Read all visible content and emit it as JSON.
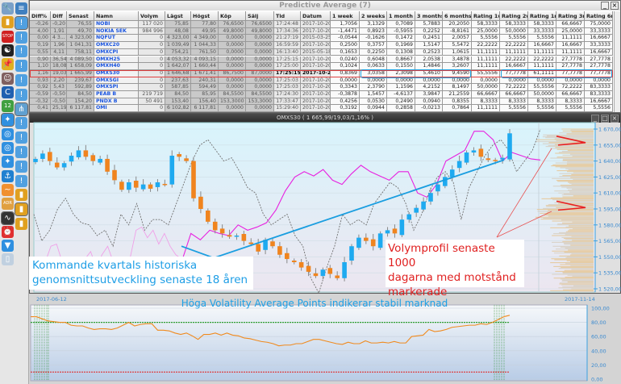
{
  "toolbar": {
    "col1": [
      "wrench-icon",
      "bar-chart-icon",
      "stop-sign-icon",
      "yin-yang-icon",
      "pushpin-icon",
      "person-photo-icon",
      "c-logo-icon",
      "calendar-icon",
      "compass-icon",
      "globe-icon",
      "globe-icon",
      "compass-icon",
      "anchor-icon",
      "line-chart-icon",
      "folder-adr-icon",
      "waveform-icon",
      "alarm-clock-icon",
      "filter-icon",
      "document-icon"
    ],
    "col2": [
      "scroll-icon",
      "chart-alert-icon",
      "chart-alert-icon",
      "chart-alert-icon",
      "chart-alert-icon",
      "chart-alert-icon",
      "chart-alert-icon",
      "network-icon",
      "chart-alert-icon",
      "chart-alert-icon",
      "chart-alert-icon",
      "chart-alert-icon",
      "chart-alert-icon",
      "bar-chart-icon",
      "bar-chart-icon",
      "bar-chart-icon"
    ],
    "calendar_day": "12",
    "folder_label": "ADR",
    "stop_label": "STOP"
  },
  "grid": {
    "title": "Predictive Average (7)",
    "columns": [
      "Diff%",
      "Diff",
      "Senast",
      "Namn",
      "Volym",
      "Lägst",
      "Högst",
      "Köp",
      "Sälj",
      "Tid",
      "Datum",
      "1 week",
      "2 weeks",
      "1 month",
      "3 months",
      "6 months",
      "Rating 1w",
      "Rating 2w",
      "Rating 1m",
      "Rating 3m",
      "Rating 6m"
    ],
    "selected_row": 7,
    "rows": [
      [
        "-0,26",
        "-0,20",
        "76,55",
        "NOBI",
        "117 020",
        "75,85",
        "77,80",
        "76,6500",
        "76,6500",
        "17:24:48",
        "2017-10-20",
        "1,7056",
        "3,1329",
        "0,7089",
        "5,7883",
        "20,2050",
        "58,3333",
        "58,3333",
        "58,3333",
        "66,6667",
        "75,0000"
      ],
      [
        "4,00",
        "1,91",
        "49,70",
        "NOKIA SEK",
        "984 996",
        "48,08",
        "49,95",
        "49,8000",
        "49,8000",
        "17:34:36",
        "2017-10-20",
        "-1,4471",
        "0,8923",
        "-0,5955",
        "0,2252",
        "-8,8161",
        "25,0000",
        "50,0000",
        "33,3333",
        "25,0000",
        "33,3333"
      ],
      [
        "0,00",
        "4 3...",
        "4 323,00",
        "NQFUT",
        "0",
        "4 323,00",
        "4 349,00",
        "0,0000",
        "0,0000",
        "21:27:19",
        "2015-03-25",
        "-0,0544",
        "-0,1626",
        "0,1472",
        "0,2451",
        "2,0057",
        "5,5556",
        "5,5556",
        "5,5556",
        "11,1111",
        "16,6667"
      ],
      [
        "0,19",
        "1,96",
        "1 041,31",
        "OMXC20",
        "0",
        "1 039,49",
        "1 044,33",
        "0,0000",
        "0,0000",
        "16:59:59",
        "2017-10-20",
        "0,2500",
        "0,3757",
        "0,1969",
        "1,5147",
        "5,5472",
        "22,2222",
        "22,2222",
        "16,6667",
        "16,6667",
        "33,3333"
      ],
      [
        "0,55",
        "4,11",
        "758,11",
        "OMXCPI",
        "0",
        "754,21",
        "761,50",
        "0,0000",
        "0,0000",
        "16:13:40",
        "2015-05-18",
        "0,1653",
        "0,2250",
        "0,1308",
        "0,2523",
        "1,0615",
        "11,1111",
        "11,1111",
        "11,1111",
        "11,1111",
        "16,6667"
      ],
      [
        "0,90",
        "36,54",
        "4 089,50",
        "OMXH25",
        "0",
        "4 053,32",
        "4 093,15",
        "0,0000",
        "0,0000",
        "17:25:15",
        "2017-10-20",
        "0,0240",
        "0,6048",
        "0,8667",
        "2,0538",
        "3,4878",
        "11,1111",
        "22,2222",
        "22,2222",
        "27,7778",
        "27,7778"
      ],
      [
        "1,10",
        "18,08",
        "1 658,09",
        "OMXH40",
        "0",
        "1 642,07",
        "1 660,44",
        "0,0000",
        "0,0000",
        "17:25:00",
        "2017-10-20",
        "0,1024",
        "0,0633",
        "0,1550",
        "1,4846",
        "3,2607",
        "11,1111",
        "16,6667",
        "11,1111",
        "27,7778",
        "27,7778"
      ],
      [
        "1,16",
        "19,03",
        "1 665,99",
        "OMXS30",
        "0",
        "1 646,68",
        "1 671,41",
        "86,7500",
        "87,0000",
        "17:25:15",
        "2017-10-20",
        "0,8369",
        "3,0358",
        "2,3098",
        "5,4610",
        "9,4590",
        "55,5556",
        "77,7778",
        "61,1111",
        "77,7778",
        "77,7778"
      ],
      [
        "0,93",
        "2,20",
        "239,67",
        "OMXSGI",
        "0",
        "237,63",
        "240,31",
        "0,0000",
        "0,0000",
        "17:25:03",
        "2017-10-20",
        "0,0000",
        "0,0000",
        "0,0000",
        "0,0000",
        "0,0000",
        "0,0000",
        "0,0000",
        "0,0000",
        "0,0000",
        "0,0000"
      ],
      [
        "0,92",
        "5,43",
        "592,89",
        "OMXSPI",
        "0",
        "587,85",
        "594,49",
        "0,0000",
        "0,0000",
        "17:25:03",
        "2017-10-20",
        "0,3343",
        "2,3790",
        "1,1596",
        "4,2152",
        "8,1497",
        "50,0000",
        "72,2222",
        "55,5556",
        "72,2222",
        "83,3333"
      ],
      [
        "-0,59",
        "-0,50",
        "84,50",
        "PEAB B",
        "219 719",
        "84,50",
        "85,95",
        "84,5500",
        "84,5500",
        "17:24:30",
        "2017-10-20",
        "-0,3878",
        "1,5457",
        "-4,6137",
        "3,9847",
        "21,2559",
        "66,6667",
        "66,6667",
        "50,0000",
        "66,6667",
        "83,3333"
      ],
      [
        "-0,32",
        "-0,50",
        "154,20",
        "PNDX B",
        "50 491",
        "153,40",
        "156,40",
        "153,3000",
        "153,3000",
        "17:33:47",
        "2017-10-20",
        "0,4256",
        "0,0530",
        "0,2490",
        "0,0940",
        "0,8355",
        "8,3333",
        "8,3333",
        "8,3333",
        "8,3333",
        "16,6667"
      ],
      [
        "0,41",
        "25,19",
        "6 117,81",
        "OMI",
        "0",
        "6 102,82",
        "6 117,81",
        "0,0000",
        "0,0000",
        "15:29:40",
        "2017-10-20",
        "0,3192",
        "0,0944",
        "0,2858",
        "-0,0213",
        "0,7864",
        "11,1111",
        "5,5556",
        "5,5556",
        "5,5556",
        "5,5556"
      ]
    ]
  },
  "chart_data": [
    {
      "type": "candlestick",
      "title": "OMXS30 ( 1 665,99/19,03/1,16% )",
      "ylim": [
        1515,
        1673
      ],
      "yticks": [
        "1 670,00",
        "1 655,00",
        "1 640,00",
        "1 625,00",
        "1 610,00",
        "1 595,00",
        "1 580,00",
        "1 565,00",
        "1 550,00",
        "1 535,00",
        "1 520,00"
      ],
      "ytick_values": [
        1670,
        1655,
        1640,
        1625,
        1610,
        1595,
        1580,
        1565,
        1550,
        1535,
        1520
      ],
      "closes": [
        1642,
        1647,
        1640,
        1634,
        1638,
        1645,
        1650,
        1644,
        1640,
        1642,
        1630,
        1622,
        1613,
        1620,
        1615,
        1618,
        1614,
        1620,
        1618,
        1645,
        1644,
        1640,
        1605,
        1595,
        1583,
        1575,
        1572,
        1569,
        1570,
        1565,
        1562,
        1555,
        1566,
        1560,
        1552,
        1548,
        1545,
        1540,
        1536,
        1532,
        1538,
        1534,
        1530,
        1545,
        1560,
        1568,
        1565,
        1560,
        1572,
        1575,
        1572,
        1585,
        1590,
        1596,
        1602,
        1610,
        1618,
        1625,
        1632,
        1640,
        1648,
        1650,
        1644,
        1641,
        1640,
        1643,
        1666
      ],
      "gray_indicator": [
        1590,
        1565,
        1575,
        1595,
        1605,
        1590,
        1582,
        1580,
        1570,
        1575,
        1560,
        1590,
        1580,
        1600,
        1575,
        1585,
        1585,
        1580,
        1600,
        1620,
        1640,
        1655,
        1660,
        1650,
        1640,
        1643,
        1630,
        1615,
        1610,
        1590,
        1580,
        1585,
        1590,
        1570,
        1560,
        1530,
        1515,
        1540,
        1560,
        1590,
        1580,
        1585,
        1580,
        1600,
        1610,
        1620,
        1615,
        1600,
        1575,
        1590,
        1612,
        1625,
        1630,
        1620,
        1585,
        1615,
        1630,
        1645,
        1655,
        1660,
        1650,
        1630,
        1640,
        1650,
        1670
      ],
      "pink_history": [
        1520,
        1530,
        1545,
        1560,
        1562,
        1545,
        1530,
        1535,
        1550,
        1548,
        1555,
        1540,
        1552,
        1560,
        1545,
        1548,
        1535,
        1550,
        1575,
        1578,
        1568,
        1575,
        1562,
        1572,
        1560,
        1552,
        1548
      ],
      "magenta_forecast": [
        1545,
        1572,
        1566,
        1575,
        1572,
        1570,
        1580,
        1575,
        1578,
        1582,
        1594,
        1612,
        1625,
        1630,
        1626,
        1632,
        1622,
        1618,
        1628,
        1636,
        1630,
        1626,
        1622,
        1630,
        1630,
        1610,
        1606,
        1618,
        1640,
        1645,
        1650,
        1668,
        1668,
        1660,
        1640,
        1648,
        1645,
        1642,
        1641
      ],
      "trendline": [
        [
          0,
          1560
        ],
        [
          0.1,
          1549
        ],
        [
          1,
          1641
        ]
      ],
      "volume_profile_resistance": [
        1658,
        1597
      ],
      "annotation_left": [
        "Kommande kvartals historiska",
        "genomsnittsutveckling senaste 18 åren"
      ],
      "annotation_right": [
        "Volymprofil senaste 1000",
        "dagarna med motstånd",
        "markerade"
      ]
    },
    {
      "type": "line",
      "title": "Höga Volatility Average Points indikerar stabil marknad",
      "x_start": "2017-06-12",
      "x_end": "2017-11-14",
      "ylim": [
        0,
        100
      ],
      "yticks": [
        "100,00",
        "80,00",
        "60,00",
        "40,00",
        "20,00",
        "0,00"
      ],
      "ytick_values": [
        100,
        80,
        60,
        40,
        20,
        0
      ],
      "upper_threshold": 80,
      "lower_threshold": 10,
      "values": [
        88,
        88,
        85,
        82,
        81,
        80,
        80,
        76,
        75,
        75,
        72,
        70,
        71,
        71,
        70,
        72,
        76,
        80,
        75,
        77,
        78,
        78,
        69,
        69,
        68,
        65,
        63,
        65,
        61,
        56,
        63,
        63,
        65,
        62,
        65,
        62,
        61,
        58,
        57,
        55,
        53,
        52,
        50,
        47,
        48,
        48,
        50,
        50,
        53,
        56,
        56,
        54,
        52,
        50,
        49,
        52,
        50,
        50,
        54,
        51,
        51,
        52,
        51,
        53,
        51,
        51,
        60,
        61,
        62,
        70,
        67,
        68,
        70,
        73,
        74,
        75,
        76,
        76,
        78,
        77,
        80,
        84,
        88,
        90
      ]
    }
  ]
}
